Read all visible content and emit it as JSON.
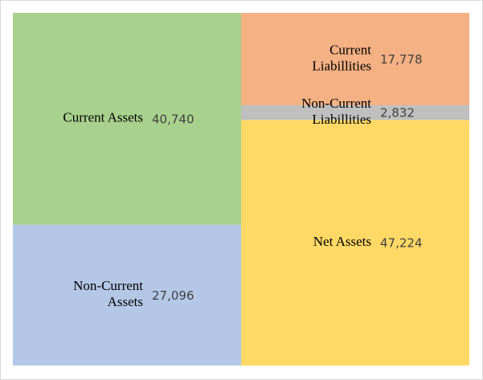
{
  "chart_data": {
    "type": "stacked_columns",
    "columns": [
      {
        "segments": [
          {
            "label": [
              "Current Assets"
            ],
            "value": 40740,
            "value_label": "40,740",
            "color": "#a9d18e"
          },
          {
            "label": [
              "Non-Current",
              "Assets"
            ],
            "value": 27096,
            "value_label": "27,096",
            "color": "#b4c7e7"
          }
        ]
      },
      {
        "segments": [
          {
            "label": [
              "Current",
              "Liabillities"
            ],
            "value": 17778,
            "value_label": "17,778",
            "color": "#f4b183"
          },
          {
            "label": [
              "Non-Current",
              "Liabillities"
            ],
            "value": 2832,
            "value_label": "2,832",
            "color": "#bfbfbf"
          },
          {
            "label": [
              "Net Assets"
            ],
            "value": 47224,
            "value_label": "47,224",
            "color": "#ffd966"
          }
        ]
      }
    ]
  }
}
